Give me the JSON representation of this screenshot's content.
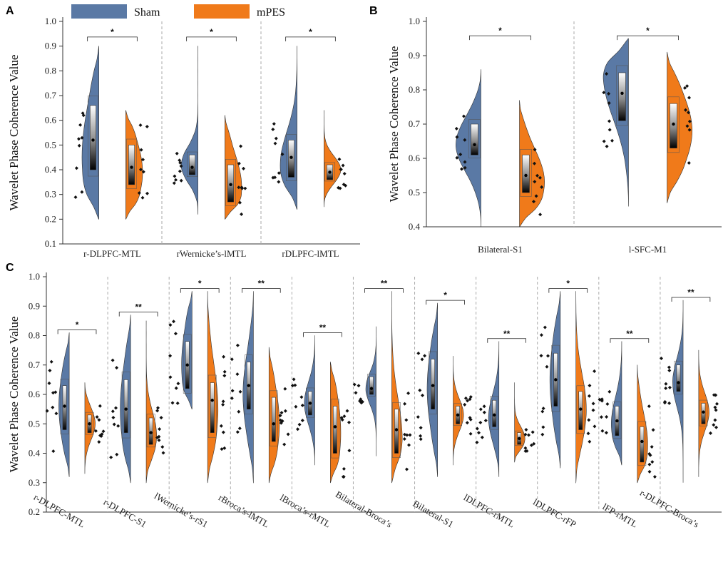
{
  "legend": {
    "items": [
      {
        "name": "Sham",
        "color": "#5a79a5"
      },
      {
        "name": "mPES",
        "color": "#f07a1a"
      }
    ]
  },
  "chart_data": [
    {
      "panel": "A",
      "type": "split-violin",
      "ylabel": "Wavelet Phase Coherence Value",
      "ylim": [
        0.1,
        1.0
      ],
      "yticks": [
        "0.1",
        "0.2",
        "0.3",
        "0.4",
        "0.5",
        "0.6",
        "0.7",
        "0.8",
        "0.9",
        "1.0"
      ],
      "categories": [
        "r-DLPFC-MTL",
        "rWernicke’s-lMTL",
        "rDLPFC-lMTL"
      ],
      "significance": [
        "*",
        "*",
        "*"
      ],
      "series": [
        {
          "name": "Sham",
          "groups": [
            {
              "min": 0.2,
              "q1": 0.4,
              "median": 0.52,
              "q3": 0.66,
              "max": 0.9,
              "mode": 0.45
            },
            {
              "min": 0.22,
              "q1": 0.38,
              "median": 0.41,
              "q3": 0.46,
              "max": 0.9,
              "mode": 0.42
            },
            {
              "min": 0.24,
              "q1": 0.37,
              "median": 0.45,
              "q3": 0.52,
              "max": 0.9,
              "mode": 0.42
            }
          ]
        },
        {
          "name": "mPES",
          "groups": [
            {
              "min": 0.2,
              "q1": 0.34,
              "median": 0.41,
              "q3": 0.5,
              "max": 0.64,
              "mode": 0.39
            },
            {
              "min": 0.2,
              "q1": 0.27,
              "median": 0.34,
              "q3": 0.42,
              "max": 0.62,
              "mode": 0.33
            },
            {
              "min": 0.25,
              "q1": 0.36,
              "median": 0.39,
              "q3": 0.42,
              "max": 0.64,
              "mode": 0.4
            }
          ]
        }
      ]
    },
    {
      "panel": "B",
      "type": "split-violin",
      "ylabel": "Wavelet Phase Coherence Value",
      "ylim": [
        0.4,
        1.0
      ],
      "yticks": [
        "0.4",
        "0.5",
        "0.6",
        "0.7",
        "0.8",
        "0.9",
        "1.0"
      ],
      "categories": [
        "Bilateral-S1",
        "l-SFC-M1"
      ],
      "significance": [
        "*",
        "*"
      ],
      "series": [
        {
          "name": "Sham",
          "groups": [
            {
              "min": 0.4,
              "q1": 0.61,
              "median": 0.64,
              "q3": 0.7,
              "max": 0.86,
              "mode": 0.64
            },
            {
              "min": 0.46,
              "q1": 0.71,
              "median": 0.79,
              "q3": 0.85,
              "max": 0.95,
              "mode": 0.84
            }
          ]
        },
        {
          "name": "mPES",
          "groups": [
            {
              "min": 0.4,
              "q1": 0.5,
              "median": 0.55,
              "q3": 0.61,
              "max": 0.77,
              "mode": 0.53
            },
            {
              "min": 0.47,
              "q1": 0.63,
              "median": 0.7,
              "q3": 0.76,
              "max": 0.91,
              "mode": 0.68
            }
          ]
        }
      ]
    },
    {
      "panel": "C",
      "type": "split-violin",
      "ylabel": "Wavelet Phase Coherence Value",
      "ylim": [
        0.2,
        1.0
      ],
      "yticks": [
        "0.2",
        "0.3",
        "0.4",
        "0.5",
        "0.6",
        "0.7",
        "0.8",
        "0.9",
        "1.0"
      ],
      "categories": [
        "r-DLPFC-MTL",
        "r-DLPFC-S1",
        "lWernicke’s-rS1",
        "rBroca’s-lMTL",
        "lBroca’s-rMTL",
        "Bilateral-Broca’s",
        "Bilateral-S1",
        "lDLPFC-rMTL",
        "lDLPFC-rFP",
        "lFP-rMTL",
        "r-DLPFC-Broca’s"
      ],
      "significance": [
        "*",
        "**",
        "*",
        "**",
        "**",
        "**",
        "*",
        "**",
        "*",
        "**",
        "**"
      ],
      "series": [
        {
          "name": "Sham",
          "groups": [
            {
              "min": 0.32,
              "q1": 0.48,
              "median": 0.56,
              "q3": 0.63,
              "max": 0.81,
              "mode": 0.56
            },
            {
              "min": 0.3,
              "q1": 0.47,
              "median": 0.55,
              "q3": 0.65,
              "max": 0.87,
              "mode": 0.55
            },
            {
              "min": 0.55,
              "q1": 0.62,
              "median": 0.7,
              "q3": 0.78,
              "max": 0.95,
              "mode": 0.7
            },
            {
              "min": 0.3,
              "q1": 0.55,
              "median": 0.63,
              "q3": 0.71,
              "max": 0.95,
              "mode": 0.6
            },
            {
              "min": 0.36,
              "q1": 0.53,
              "median": 0.57,
              "q3": 0.61,
              "max": 0.8,
              "mode": 0.57
            },
            {
              "min": 0.39,
              "q1": 0.6,
              "median": 0.62,
              "q3": 0.66,
              "max": 0.83,
              "mode": 0.62
            },
            {
              "min": 0.32,
              "q1": 0.55,
              "median": 0.63,
              "q3": 0.72,
              "max": 0.91,
              "mode": 0.62
            },
            {
              "min": 0.32,
              "q1": 0.49,
              "median": 0.53,
              "q3": 0.58,
              "max": 0.78,
              "mode": 0.52
            },
            {
              "min": 0.35,
              "q1": 0.56,
              "median": 0.65,
              "q3": 0.74,
              "max": 0.95,
              "mode": 0.65
            },
            {
              "min": 0.36,
              "q1": 0.46,
              "median": 0.51,
              "q3": 0.56,
              "max": 0.78,
              "mode": 0.5
            },
            {
              "min": 0.3,
              "q1": 0.61,
              "median": 0.64,
              "q3": 0.7,
              "max": 0.92,
              "mode": 0.64
            }
          ]
        },
        {
          "name": "mPES",
          "groups": [
            {
              "min": 0.33,
              "q1": 0.47,
              "median": 0.5,
              "q3": 0.53,
              "max": 0.64,
              "mode": 0.5
            },
            {
              "min": 0.3,
              "q1": 0.43,
              "median": 0.47,
              "q3": 0.52,
              "max": 0.85,
              "mode": 0.46
            },
            {
              "min": 0.3,
              "q1": 0.47,
              "median": 0.58,
              "q3": 0.64,
              "max": 0.95,
              "mode": 0.55
            },
            {
              "min": 0.3,
              "q1": 0.44,
              "median": 0.5,
              "q3": 0.59,
              "max": 0.76,
              "mode": 0.5
            },
            {
              "min": 0.3,
              "q1": 0.4,
              "median": 0.49,
              "q3": 0.56,
              "max": 0.71,
              "mode": 0.47
            },
            {
              "min": 0.3,
              "q1": 0.4,
              "median": 0.48,
              "q3": 0.55,
              "max": 0.95,
              "mode": 0.45
            },
            {
              "min": 0.36,
              "q1": 0.5,
              "median": 0.53,
              "q3": 0.56,
              "max": 0.73,
              "mode": 0.53
            },
            {
              "min": 0.37,
              "q1": 0.43,
              "median": 0.45,
              "q3": 0.47,
              "max": 0.64,
              "mode": 0.45
            },
            {
              "min": 0.3,
              "q1": 0.48,
              "median": 0.55,
              "q3": 0.61,
              "max": 0.95,
              "mode": 0.55
            },
            {
              "min": 0.3,
              "q1": 0.37,
              "median": 0.44,
              "q3": 0.49,
              "max": 0.7,
              "mode": 0.43
            },
            {
              "min": 0.32,
              "q1": 0.5,
              "median": 0.54,
              "q3": 0.57,
              "max": 0.75,
              "mode": 0.54
            }
          ]
        }
      ]
    }
  ]
}
